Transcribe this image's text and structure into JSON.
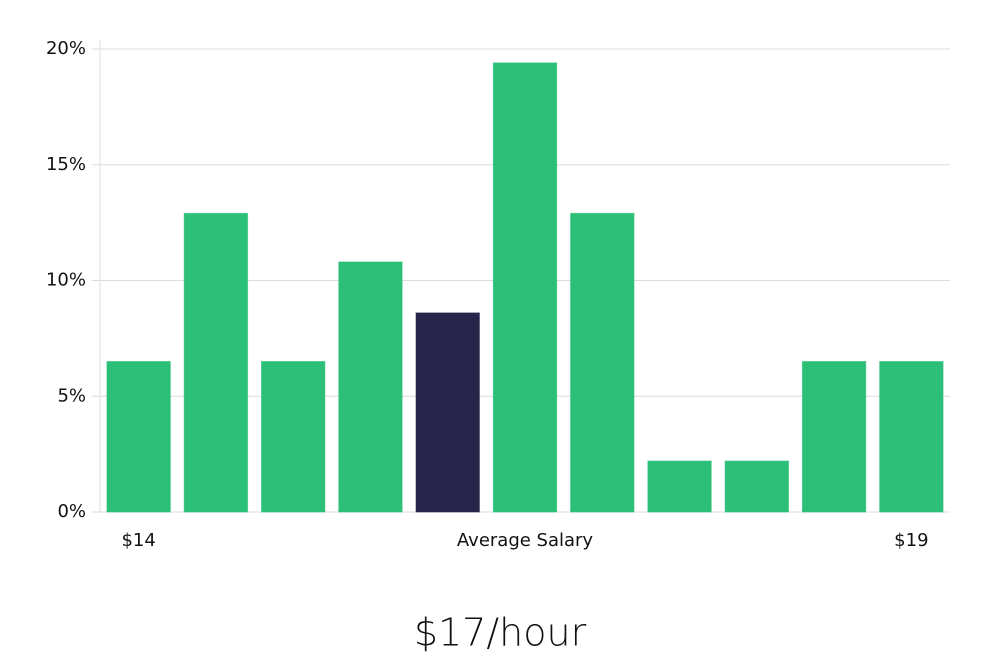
{
  "chart_data": {
    "type": "bar",
    "caption": "$17/hour",
    "categories": [
      "$14",
      null,
      null,
      null,
      null,
      "Average Salary",
      null,
      null,
      null,
      null,
      "$19"
    ],
    "values": [
      6.5,
      12.9,
      6.5,
      10.8,
      8.6,
      19.4,
      12.9,
      2.2,
      2.2,
      6.5,
      6.5
    ],
    "colors": [
      "#2bbf78",
      "#2bbf78",
      "#2bbf78",
      "#2bbf78",
      "#29244a",
      "#2bbf78",
      "#2bbf78",
      "#2bbf78",
      "#2bbf78",
      "#2bbf78",
      "#2bbf78"
    ],
    "ylim": [
      0,
      20
    ],
    "yticks": [
      {
        "value": 0,
        "label": "0%"
      },
      {
        "value": 5,
        "label": "5%"
      },
      {
        "value": 10,
        "label": "10%"
      },
      {
        "value": 15,
        "label": "15%"
      },
      {
        "value": 20,
        "label": "20%"
      }
    ],
    "grid": true
  }
}
